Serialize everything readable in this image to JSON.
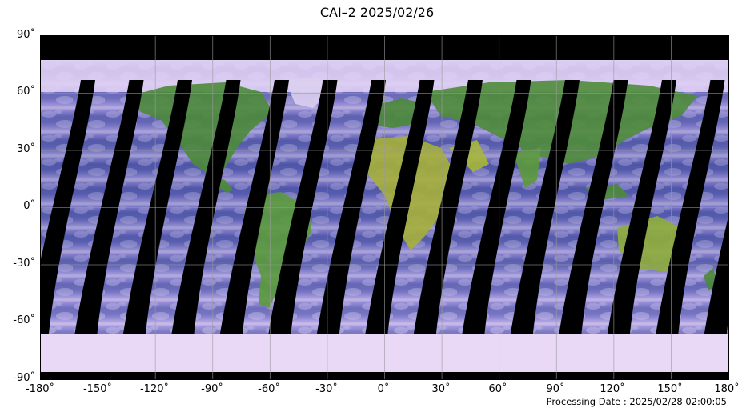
{
  "title": "CAI–2 2025/02/26",
  "processing_date": "Processing Date : 2025/02/28 02:00:05",
  "lat_labels": [
    "90˚",
    "60˚",
    "30˚",
    "0˚",
    "-30˚",
    "-60˚",
    "-90˚"
  ],
  "lon_labels": [
    "-180˚",
    "-150˚",
    "-120˚",
    "-90˚",
    "-60˚",
    "-30˚",
    "0˚",
    "30˚",
    "60˚",
    "90˚",
    "120˚",
    "150˚",
    "180˚"
  ],
  "colors": {
    "ocean_cloud": "#4a4fa0",
    "cloud": "#d8c8f0",
    "land": "#4c8a3a",
    "desert": "#a8b83a",
    "ice": "#e8d8f5",
    "gap": "#000000",
    "grid": "#9a9a9a"
  }
}
